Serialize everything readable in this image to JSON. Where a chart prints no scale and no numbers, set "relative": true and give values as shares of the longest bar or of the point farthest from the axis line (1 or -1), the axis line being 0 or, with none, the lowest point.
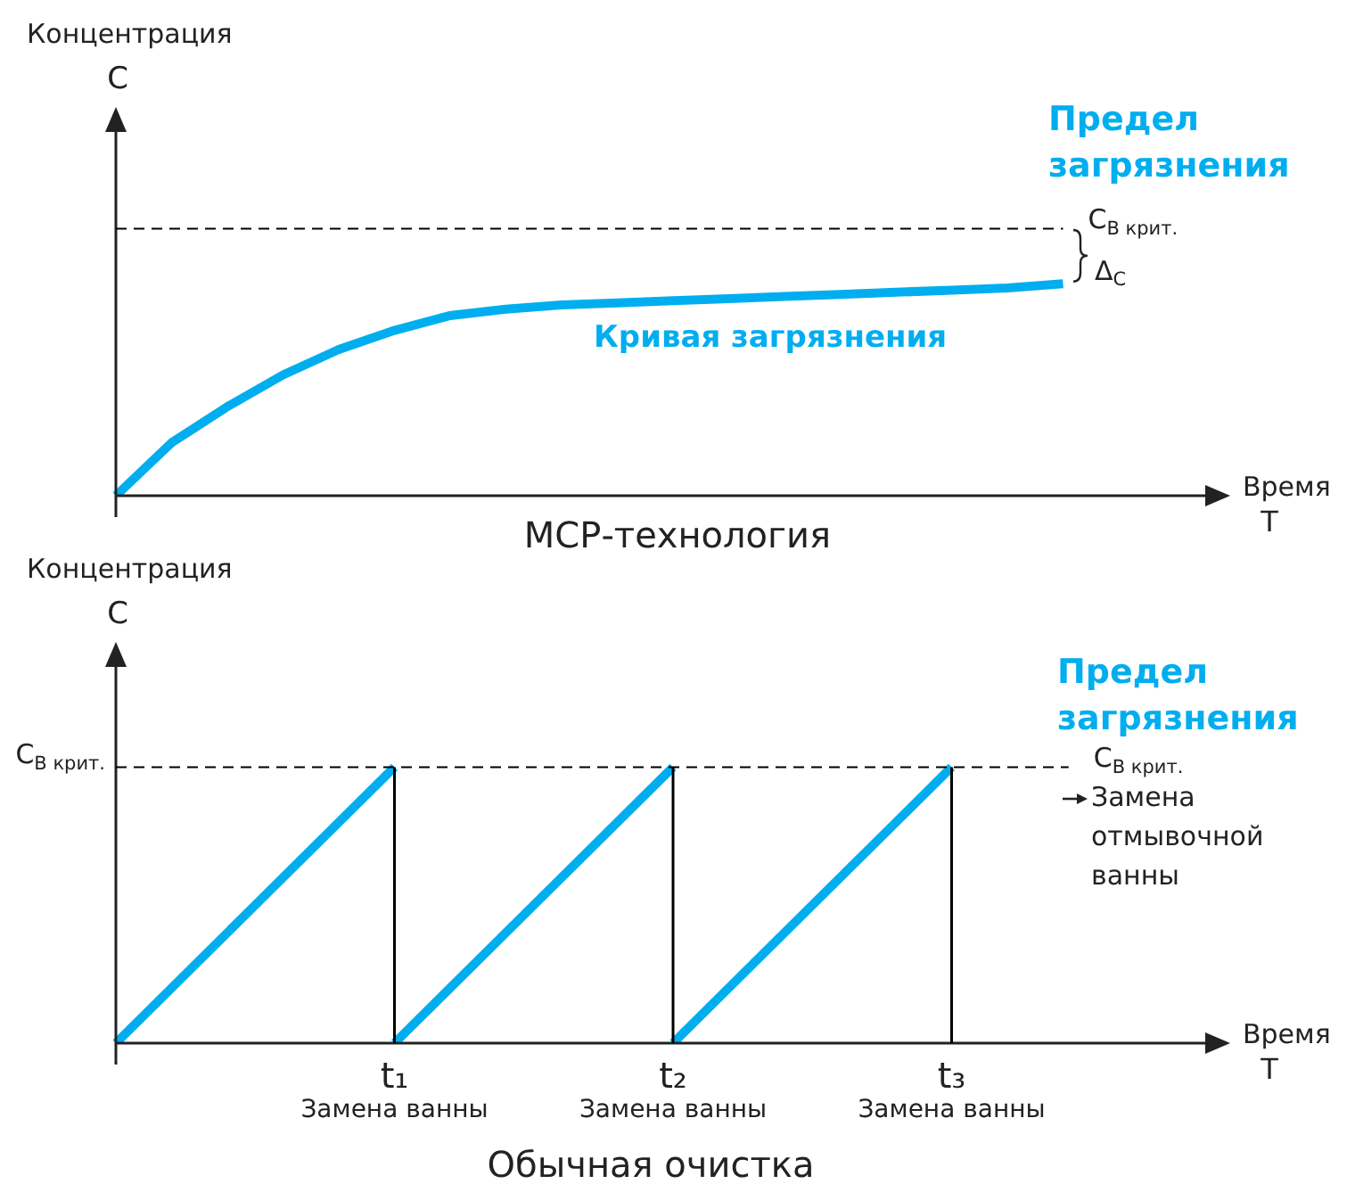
{
  "chart_data": [
    {
      "type": "line",
      "title": "МСР-технология",
      "xlabel": "Время T",
      "ylabel": "Концентрация C",
      "relative": true,
      "categories": [
        null,
        null,
        null,
        null,
        null,
        null,
        null,
        null,
        null,
        null,
        null,
        null,
        null,
        null,
        null,
        null,
        null,
        null,
        null,
        null,
        null
      ],
      "series": [
        {
          "color": "#00aeef",
          "values": [
            0,
            0.25,
            0.42,
            0.57,
            0.69,
            0.78,
            0.85,
            0.88,
            0.9,
            0.91,
            0.92,
            0.93,
            0.94,
            0.95,
            0.96,
            0.97,
            0.98,
            1,
            null,
            null,
            null
          ]
        }
      ],
      "ref_lines": [
        {
          "axis": "y",
          "value": 1.26,
          "label": "C$_{В крит.}$",
          "color": "#000000",
          "line_style": "dashed"
        }
      ],
      "annotations": [
        "Предел загрязнения",
        "Кривая загрязнения",
        "Δ$_{C}$"
      ]
    },
    {
      "type": "line",
      "title": "Обычная очистка",
      "xlabel": "Время T",
      "ylabel": "Концентрация C",
      "relative": true,
      "categories": [
        null,
        "t₁ Замена ванны",
        "t₂ Замена ванны",
        "t₃ Замена ванны",
        null
      ],
      "series": [
        {
          "color": "#00aeef",
          "values": [
            0,
            1,
            null,
            null,
            null
          ]
        },
        {
          "color": "#00aeef",
          "values": [
            null,
            0,
            1,
            null,
            null
          ]
        },
        {
          "color": "#00aeef",
          "values": [
            null,
            null,
            0,
            1,
            null
          ]
        }
      ],
      "ref_lines": [
        {
          "axis": "y",
          "value": 1,
          "label": "C$_{В крит.}$",
          "color": "#000000",
          "line_style": "dashed"
        },
        {
          "axis": "x",
          "value": "t₁ Замена ванны",
          "color": "#000000"
        },
        {
          "axis": "x",
          "value": "t₂ Замена ванны",
          "color": "#000000"
        },
        {
          "axis": "x",
          "value": "t₃ Замена ванны",
          "color": "#000000"
        }
      ],
      "annotations": [
        "Предел загрязнения",
        "Замена отмывочной ванны"
      ]
    }
  ]
}
